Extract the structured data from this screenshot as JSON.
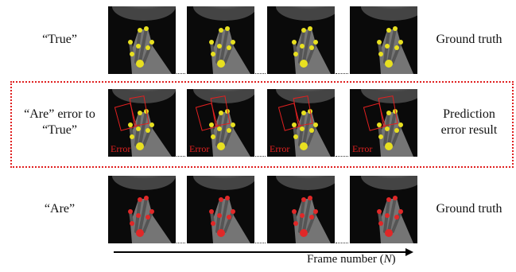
{
  "rows": [
    {
      "label_lines": [
        "“True”"
      ],
      "description_lines": [
        "Ground truth"
      ]
    },
    {
      "label_lines": [
        "“Are” error to",
        "“True”"
      ],
      "description_lines": [
        "Prediction",
        "error result"
      ],
      "frame_labels": [
        "Error",
        "Error",
        "Error",
        "Error"
      ]
    },
    {
      "label_lines": [
        "“Are”"
      ],
      "description_lines": [
        "Ground truth"
      ]
    }
  ],
  "axis": {
    "label": "Frame number (",
    "variable": "N",
    "closing": ")"
  }
}
